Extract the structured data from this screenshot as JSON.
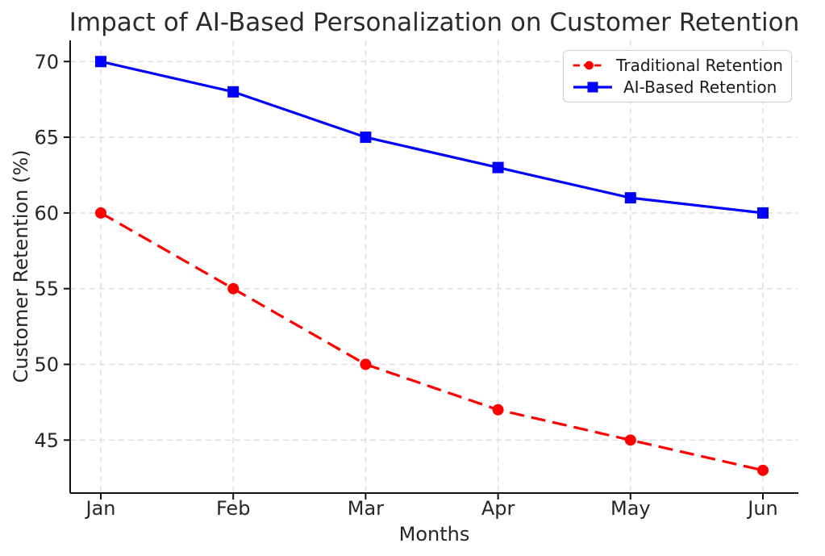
{
  "chart_data": {
    "type": "line",
    "title": "Impact of AI-Based Personalization on Customer Retention",
    "xlabel": "Months",
    "ylabel": "Customer Retention (%)",
    "categories": [
      "Jan",
      "Feb",
      "Mar",
      "Apr",
      "May",
      "Jun"
    ],
    "series": [
      {
        "name": "Traditional Retention",
        "values": [
          60,
          55,
          50,
          47,
          45,
          43
        ],
        "color": "#ff0000",
        "line_style": "dashed",
        "marker": "circle"
      },
      {
        "name": "AI-Based Retention",
        "values": [
          70,
          68,
          65,
          63,
          61,
          60
        ],
        "color": "#0000ff",
        "line_style": "solid",
        "marker": "square"
      }
    ],
    "yticks": [
      45,
      50,
      55,
      60,
      65,
      70
    ],
    "ylim": [
      41.5,
      71.4
    ],
    "grid": true,
    "legend_position": "upper right"
  },
  "style": {
    "background": "#ffffff",
    "text_color": "#262626",
    "axis_color": "#111111",
    "grid_color": "#dcdcdc",
    "legend_border": "#cccccc"
  }
}
